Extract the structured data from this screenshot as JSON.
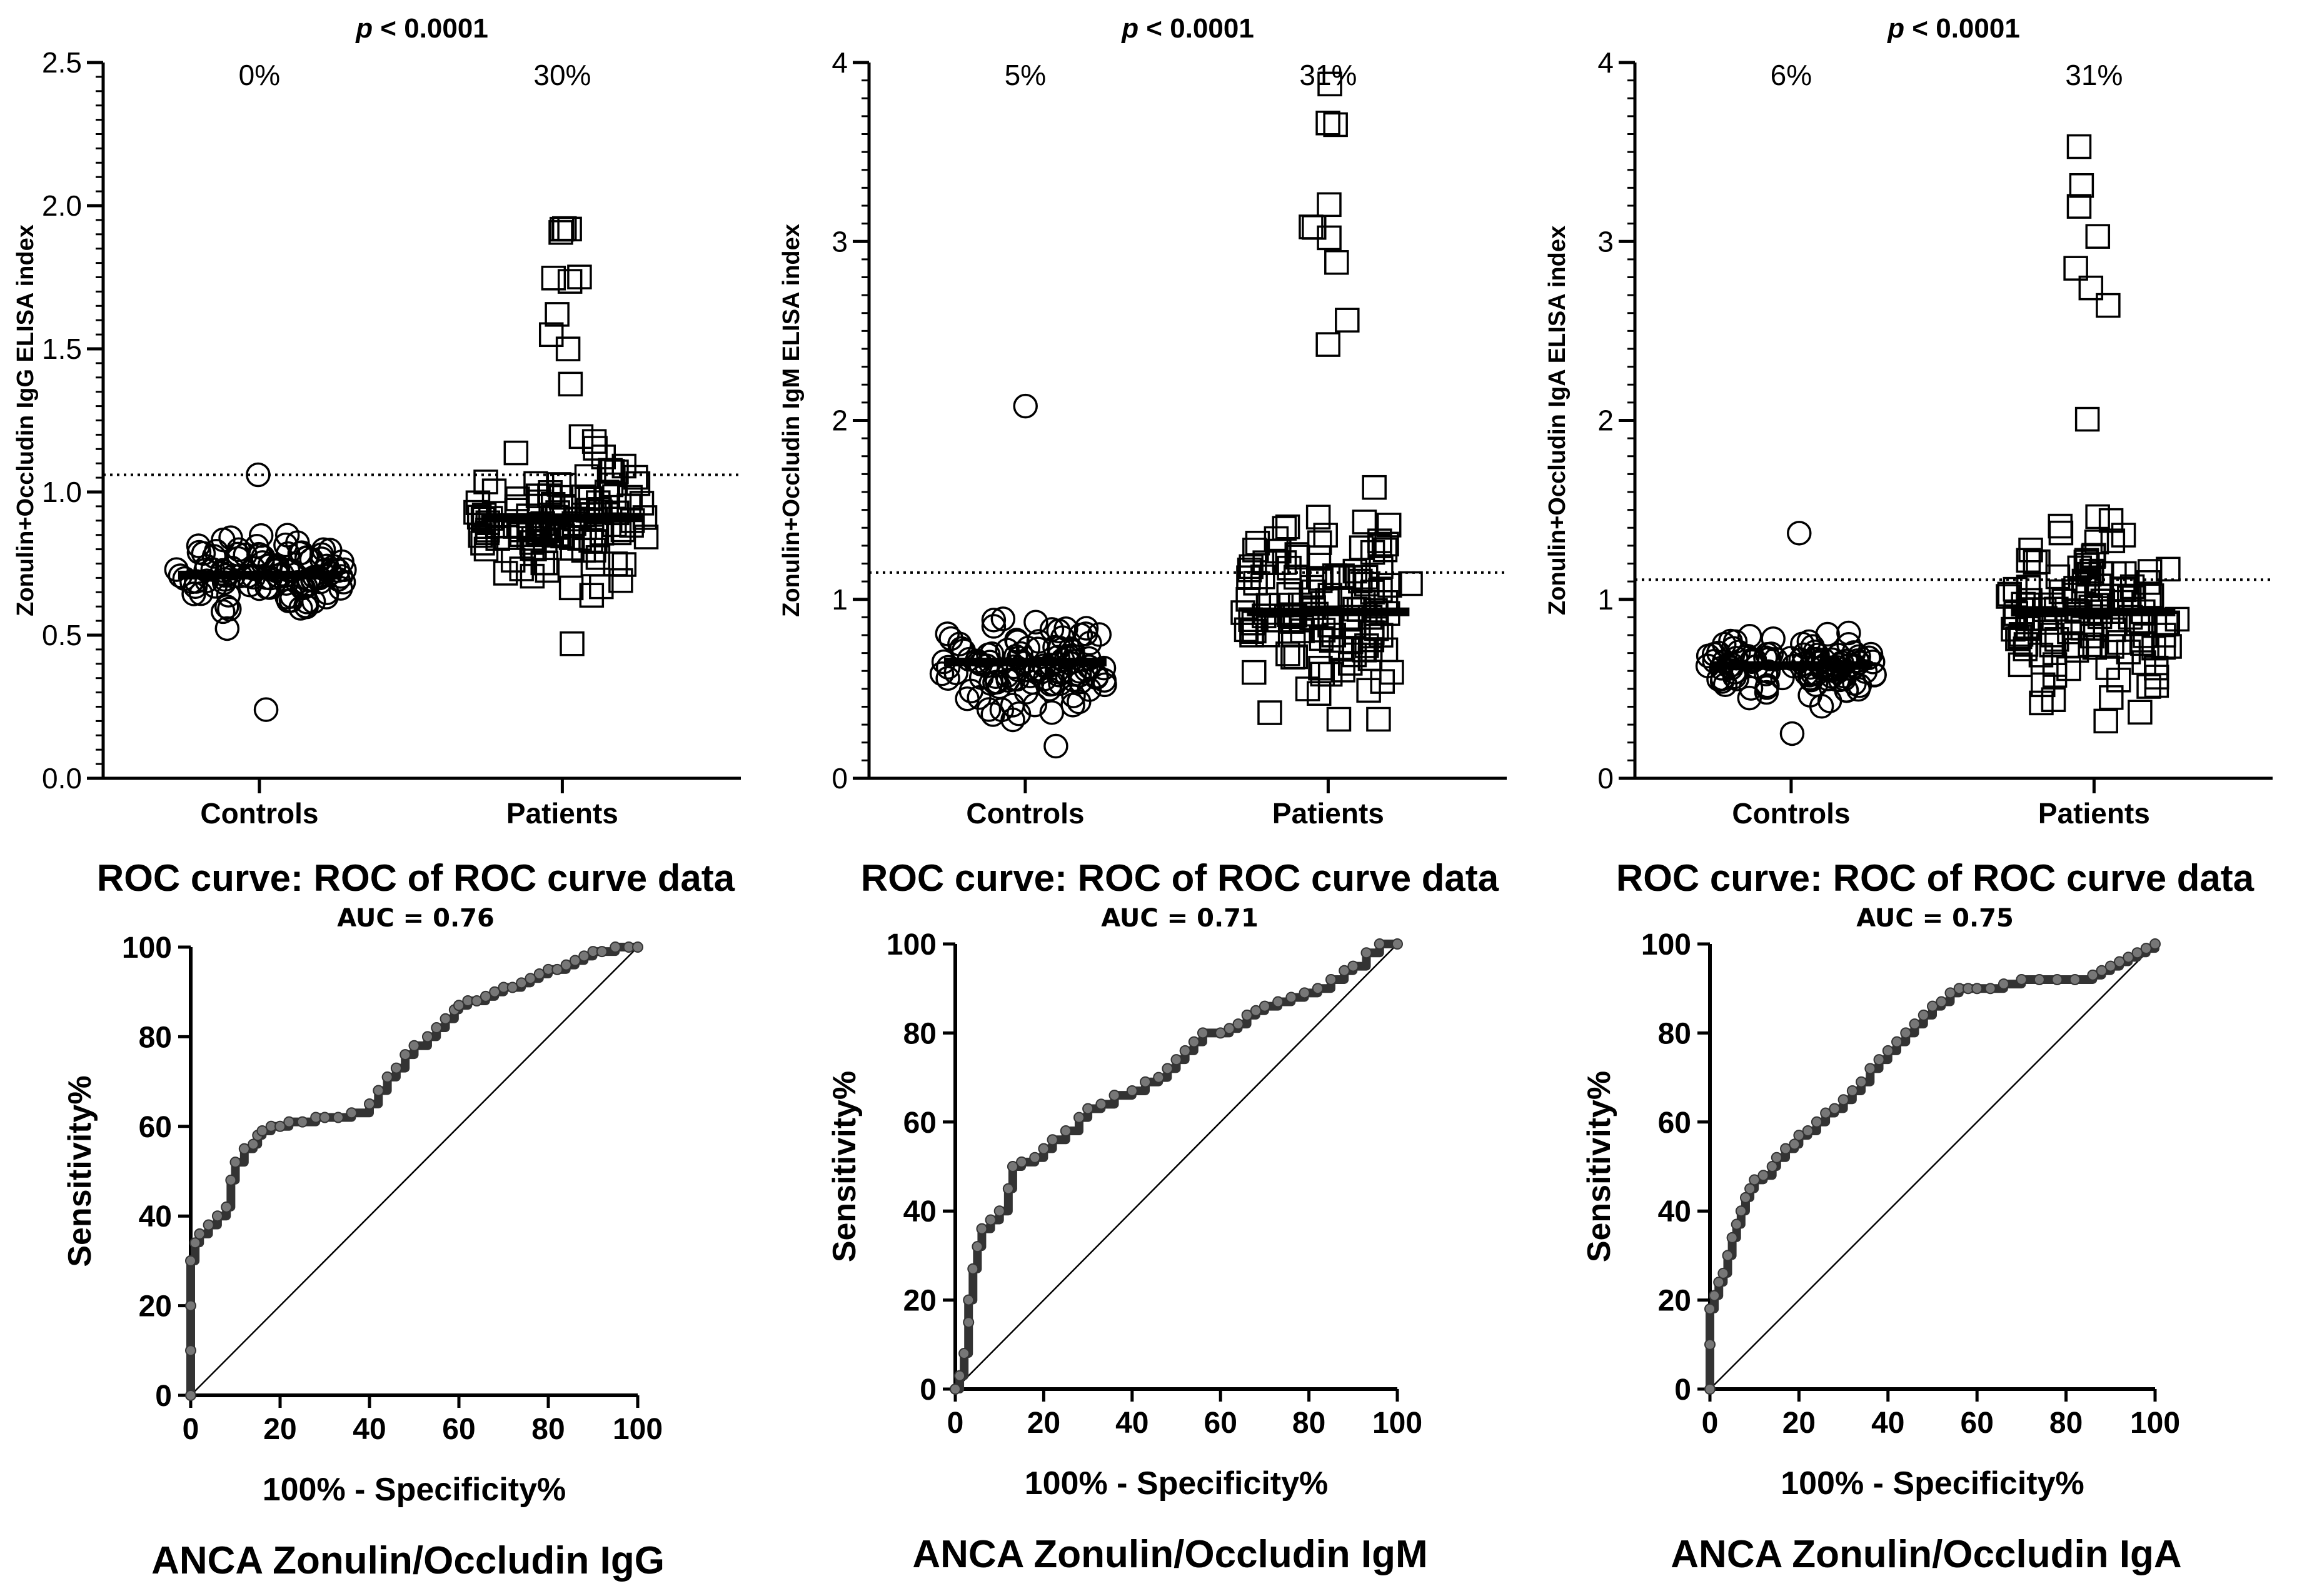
{
  "colors": {
    "ink": "#000000",
    "roc_point": "#777777",
    "background": "#ffffff"
  },
  "chart_data": [
    {
      "type": "scatter",
      "ylabel": "Zonulin+Occludin IgG ELISA index",
      "categories": [
        "Controls",
        "Patients"
      ],
      "ylim": [
        0,
        2.5
      ],
      "yticks": [
        "0.0",
        "0.5",
        "1.0",
        "1.5",
        "2.0",
        "2.5"
      ],
      "yticks_values": [
        0,
        0.5,
        1.0,
        1.5,
        2.0,
        2.5
      ],
      "pvalue_italic": "p",
      "pvalue_rest": " < 0.0001",
      "percent_labels": [
        "0%",
        "30%"
      ],
      "cutoff": 1.06,
      "medians": [
        0.71,
        0.91
      ],
      "controls_range": [
        0.24,
        1.06
      ],
      "patients_range": [
        0.47,
        1.92
      ],
      "n": [
        110,
        130
      ],
      "seed": 11
    },
    {
      "type": "scatter",
      "ylabel": "Zonulin+Occludin IgM ELISA index",
      "categories": [
        "Controls",
        "Patients"
      ],
      "ylim": [
        0,
        4
      ],
      "yticks": [
        "0",
        "1",
        "2",
        "3",
        "4"
      ],
      "yticks_values": [
        0,
        1,
        2,
        3,
        4
      ],
      "pvalue_italic": "p",
      "pvalue_rest": " < 0.0001",
      "percent_labels": [
        "5%",
        "31%"
      ],
      "cutoff": 1.15,
      "medians": [
        0.65,
        0.93
      ],
      "controls_range": [
        0.18,
        2.08
      ],
      "patients_range": [
        0.33,
        3.88
      ],
      "n": [
        110,
        130
      ],
      "seed": 23
    },
    {
      "type": "scatter",
      "ylabel": "Zonulin+Occludin IgA ELISA index",
      "categories": [
        "Controls",
        "Patients"
      ],
      "ylim": [
        0,
        4
      ],
      "yticks": [
        "0",
        "1",
        "2",
        "3",
        "4"
      ],
      "yticks_values": [
        0,
        1,
        2,
        3,
        4
      ],
      "pvalue_italic": "p",
      "pvalue_rest": " < 0.0001",
      "percent_labels": [
        "6%",
        "31%"
      ],
      "cutoff": 1.11,
      "medians": [
        0.63,
        0.93
      ],
      "controls_range": [
        0.25,
        1.37
      ],
      "patients_range": [
        0.32,
        3.53
      ],
      "n": [
        110,
        130
      ],
      "seed": 37
    },
    {
      "type": "line",
      "title": "ROC curve: ROC of ROC curve data",
      "subtitle": "AUC = 0.76",
      "xlabel": "100% - Specificity%",
      "ylabel": "Sensitivity%",
      "caption": "ANCA Zonulin/Occludin IgG",
      "xlim": [
        0,
        100
      ],
      "ylim": [
        0,
        100
      ],
      "xticks": [
        "0",
        "20",
        "40",
        "60",
        "80",
        "100"
      ],
      "yticks": [
        "0",
        "20",
        "40",
        "60",
        "80",
        "100"
      ],
      "x": [
        0,
        0,
        0,
        0,
        1,
        2,
        4,
        6,
        8,
        9,
        10,
        12,
        14,
        15,
        16,
        18,
        20,
        22,
        25,
        28,
        30,
        33,
        36,
        40,
        42,
        44,
        46,
        48,
        50,
        53,
        55,
        57,
        59,
        60,
        62,
        64,
        66,
        68,
        70,
        72,
        74,
        76,
        78,
        80,
        82,
        84,
        86,
        88,
        90,
        92,
        95,
        98,
        100
      ],
      "y": [
        0,
        10,
        20,
        30,
        34,
        36,
        38,
        40,
        42,
        48,
        52,
        55,
        56,
        58,
        59,
        60,
        60,
        61,
        61,
        62,
        62,
        62,
        63,
        65,
        68,
        71,
        73,
        76,
        78,
        80,
        82,
        84,
        86,
        87,
        88,
        88,
        89,
        90,
        91,
        91,
        92,
        93,
        94,
        95,
        95,
        96,
        97,
        98,
        99,
        99,
        100,
        100,
        100
      ]
    },
    {
      "type": "line",
      "title": "ROC curve: ROC of ROC curve data",
      "subtitle": "AUC = 0.71",
      "xlabel": "100% - Specificity%",
      "ylabel": "Sensitivity%",
      "caption": "ANCA Zonulin/Occludin IgM",
      "xlim": [
        0,
        100
      ],
      "ylim": [
        0,
        100
      ],
      "xticks": [
        "0",
        "20",
        "40",
        "60",
        "80",
        "100"
      ],
      "yticks": [
        "0",
        "20",
        "40",
        "60",
        "80",
        "100"
      ],
      "x": [
        0,
        1,
        2,
        3,
        3,
        4,
        5,
        6,
        8,
        10,
        12,
        13,
        15,
        18,
        20,
        22,
        25,
        28,
        30,
        33,
        36,
        40,
        43,
        46,
        48,
        50,
        52,
        54,
        56,
        60,
        62,
        64,
        66,
        68,
        70,
        73,
        76,
        79,
        82,
        85,
        88,
        90,
        93,
        96,
        100
      ],
      "y": [
        0,
        3,
        8,
        15,
        20,
        27,
        32,
        36,
        38,
        40,
        45,
        50,
        51,
        52,
        54,
        56,
        58,
        61,
        63,
        64,
        66,
        67,
        69,
        70,
        72,
        74,
        76,
        78,
        80,
        80,
        81,
        82,
        84,
        85,
        86,
        87,
        88,
        89,
        90,
        92,
        94,
        95,
        98,
        100,
        100
      ]
    },
    {
      "type": "line",
      "title": "ROC curve: ROC of ROC curve data",
      "subtitle": "AUC = 0.75",
      "xlabel": "100% - Specificity%",
      "ylabel": "Sensitivity%",
      "caption": "ANCA Zonulin/Occludin IgA",
      "xlim": [
        0,
        100
      ],
      "ylim": [
        0,
        100
      ],
      "xticks": [
        "0",
        "20",
        "40",
        "60",
        "80",
        "100"
      ],
      "yticks": [
        "0",
        "20",
        "40",
        "60",
        "80",
        "100"
      ],
      "x": [
        0,
        0,
        0,
        1,
        2,
        3,
        4,
        5,
        6,
        7,
        8,
        9,
        10,
        12,
        14,
        15,
        17,
        19,
        20,
        22,
        24,
        26,
        28,
        30,
        32,
        34,
        36,
        38,
        40,
        42,
        44,
        46,
        48,
        50,
        52,
        54,
        56,
        58,
        60,
        63,
        66,
        70,
        74,
        78,
        82,
        86,
        88,
        90,
        92,
        94,
        96,
        98,
        100
      ],
      "y": [
        0,
        10,
        18,
        21,
        24,
        26,
        30,
        34,
        37,
        40,
        43,
        45,
        47,
        48,
        50,
        52,
        54,
        55,
        57,
        58,
        60,
        62,
        63,
        65,
        67,
        69,
        72,
        74,
        76,
        78,
        80,
        82,
        84,
        86,
        87,
        89,
        90,
        90,
        90,
        90,
        91,
        92,
        92,
        92,
        92,
        93,
        94,
        95,
        96,
        97,
        98,
        99,
        100
      ]
    }
  ]
}
